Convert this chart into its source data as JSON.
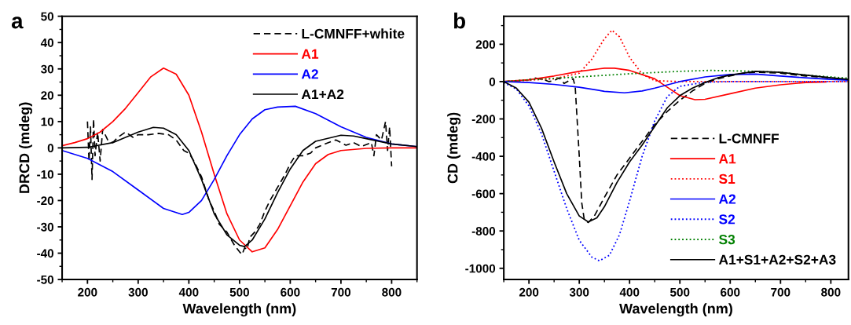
{
  "chart_data": [
    {
      "type": "line",
      "xlabel": "Wavelength (nm)",
      "ylabel": "DRCD (mdeg)",
      "annotations": [
        "a"
      ],
      "xlim": [
        150,
        850
      ],
      "xticks": [
        200,
        300,
        400,
        500,
        600,
        700,
        800
      ],
      "ylim": [
        -50,
        50
      ],
      "yticks": [
        -50,
        -40,
        -30,
        -20,
        -10,
        0,
        10,
        20,
        30,
        40,
        50
      ],
      "grid": false,
      "legend": "top right",
      "marker": "none",
      "series": [
        {
          "name": "L-CMNFF+white",
          "color": "#000000",
          "line_style": "dashed",
          "x": [
            200,
            203,
            206,
            209,
            212,
            215,
            220,
            225,
            230,
            240,
            250,
            260,
            275,
            290,
            300,
            320,
            340,
            360,
            375,
            390,
            400,
            410,
            425,
            440,
            450,
            460,
            475,
            490,
            500,
            505,
            510,
            515,
            520,
            530,
            540,
            550,
            560,
            575,
            590,
            600,
            610,
            625,
            640,
            650,
            675,
            690,
            700,
            710,
            725,
            740,
            760,
            765,
            770,
            780,
            788,
            792,
            796,
            800
          ],
          "values": [
            10,
            -5,
            8,
            -12,
            11,
            -3,
            6,
            -5,
            7,
            3,
            2,
            4,
            6,
            4,
            5,
            5,
            5.5,
            5,
            3,
            -1,
            -2,
            -5,
            -11,
            -20,
            -24,
            -29,
            -32,
            -37,
            -39.5,
            -40.5,
            -38,
            -38.5,
            -34,
            -32,
            -29,
            -24,
            -20,
            -15,
            -10,
            -6,
            -3,
            -3,
            -2,
            0,
            2,
            3,
            2,
            1,
            2,
            0.5,
            2,
            -3,
            5,
            3,
            10,
            -1,
            8,
            -7
          ]
        },
        {
          "name": "A1",
          "color": "#ff0000",
          "line_style": "solid",
          "x": [
            150,
            175,
            200,
            225,
            250,
            275,
            300,
            325,
            350,
            375,
            400,
            425,
            450,
            475,
            500,
            525,
            550,
            575,
            600,
            625,
            650,
            675,
            700,
            750,
            800,
            850
          ],
          "values": [
            0.8,
            2,
            3.5,
            6,
            10,
            15,
            21,
            27,
            30.3,
            28,
            20,
            6,
            -10,
            -25,
            -35,
            -39.5,
            -38,
            -31,
            -22,
            -13,
            -6,
            -2.5,
            -1,
            -0.2,
            0,
            0
          ]
        },
        {
          "name": "A2",
          "color": "#0000ff",
          "line_style": "solid",
          "x": [
            150,
            200,
            250,
            300,
            350,
            387,
            400,
            425,
            450,
            475,
            500,
            525,
            550,
            575,
            610,
            650,
            700,
            750,
            800,
            850
          ],
          "values": [
            -1,
            -4,
            -9,
            -16,
            -23,
            -25.3,
            -24.5,
            -20,
            -12,
            -3,
            5,
            11,
            14.5,
            15.5,
            15.8,
            13,
            8,
            4,
            1.5,
            0.5
          ]
        },
        {
          "name": "A1+A2",
          "color": "#000000",
          "line_style": "solid",
          "x": [
            150,
            200,
            250,
            300,
            330,
            350,
            375,
            400,
            425,
            450,
            475,
            500,
            510,
            525,
            550,
            575,
            600,
            625,
            650,
            700,
            725,
            750,
            800,
            850
          ],
          "values": [
            0,
            0.2,
            2,
            6,
            7.8,
            7.5,
            5,
            -1,
            -12,
            -25,
            -33,
            -37,
            -37.5,
            -35,
            -27,
            -17,
            -8,
            -1,
            2.5,
            4.8,
            4.5,
            3.5,
            1.5,
            0.5
          ]
        }
      ]
    },
    {
      "type": "line",
      "xlabel": "Wavelength (nm)",
      "ylabel": "CD (mdeg)",
      "annotations": [
        "b"
      ],
      "xlim": [
        150,
        835
      ],
      "xticks": [
        200,
        300,
        400,
        500,
        600,
        700,
        800
      ],
      "ylim": [
        -1060,
        350
      ],
      "yticks": [
        -1000,
        -800,
        -600,
        -400,
        -200,
        0,
        200
      ],
      "grid": false,
      "legend": "bottom right",
      "marker": "none",
      "series": [
        {
          "name": "L-CMNFF",
          "color": "#000000",
          "line_style": "dashed",
          "x": [
            150,
            180,
            200,
            210,
            220,
            230,
            240,
            250,
            260,
            270,
            280,
            288,
            292,
            300,
            305,
            310,
            318,
            330,
            350,
            375,
            400,
            425,
            450,
            475,
            500,
            525,
            550,
            575,
            600,
            625,
            650,
            700,
            750,
            800,
            835
          ],
          "values": [
            0,
            5,
            10,
            20,
            15,
            10,
            0,
            5,
            20,
            -10,
            5,
            15,
            -30,
            -400,
            -650,
            -740,
            -755,
            -720,
            -620,
            -500,
            -410,
            -320,
            -230,
            -160,
            -100,
            -50,
            -10,
            15,
            30,
            45,
            50,
            45,
            30,
            20,
            10
          ]
        },
        {
          "name": "A1",
          "color": "#ff0000",
          "line_style": "solid",
          "x": [
            150,
            200,
            250,
            300,
            350,
            370,
            400,
            450,
            475,
            500,
            530,
            550,
            600,
            650,
            700,
            750,
            790
          ],
          "values": [
            0,
            10,
            30,
            55,
            72,
            72,
            60,
            15,
            -30,
            -75,
            -97,
            -95,
            -65,
            -35,
            -17,
            -5,
            -2
          ]
        },
        {
          "name": "S1",
          "color": "#ff0000",
          "line_style": "dotted",
          "x": [
            150,
            250,
            300,
            325,
            350,
            365,
            380,
            400,
            425,
            450,
            500,
            600,
            700,
            800,
            835
          ],
          "values": [
            0,
            15,
            45,
            120,
            230,
            275,
            240,
            130,
            40,
            5,
            0,
            0,
            0,
            0,
            0
          ]
        },
        {
          "name": "A2",
          "color": "#0000ff",
          "line_style": "solid",
          "x": [
            150,
            200,
            250,
            300,
            350,
            390,
            425,
            450,
            500,
            550,
            600,
            650,
            700,
            750,
            800,
            835
          ],
          "values": [
            0,
            -5,
            -15,
            -30,
            -52,
            -60,
            -50,
            -35,
            0,
            25,
            38,
            40,
            30,
            20,
            12,
            8
          ]
        },
        {
          "name": "S2",
          "color": "#0000ff",
          "line_style": "dotted",
          "x": [
            150,
            175,
            200,
            225,
            250,
            275,
            300,
            325,
            340,
            360,
            380,
            400,
            425,
            450,
            475,
            500,
            550,
            600,
            700,
            835
          ],
          "values": [
            -5,
            -40,
            -130,
            -280,
            -480,
            -680,
            -850,
            -940,
            -960,
            -930,
            -820,
            -640,
            -400,
            -210,
            -80,
            -25,
            -3,
            0,
            0,
            0
          ]
        },
        {
          "name": "S3",
          "color": "#008000",
          "line_style": "dotted",
          "x": [
            150,
            200,
            300,
            400,
            500,
            560,
            650,
            700,
            750,
            800,
            835
          ],
          "values": [
            0,
            10,
            25,
            42,
            55,
            60,
            55,
            50,
            35,
            25,
            18
          ]
        },
        {
          "name": "A1+S1+A2+S2+A3",
          "color": "#000000",
          "line_style": "solid",
          "x": [
            150,
            175,
            200,
            225,
            250,
            275,
            300,
            318,
            335,
            350,
            375,
            400,
            425,
            450,
            475,
            500,
            525,
            550,
            575,
            600,
            650,
            700,
            750,
            800,
            835
          ],
          "values": [
            0,
            -35,
            -110,
            -250,
            -430,
            -600,
            -720,
            -752,
            -730,
            -670,
            -540,
            -430,
            -340,
            -240,
            -140,
            -75,
            -35,
            -5,
            20,
            35,
            55,
            50,
            35,
            20,
            12
          ]
        }
      ]
    }
  ]
}
